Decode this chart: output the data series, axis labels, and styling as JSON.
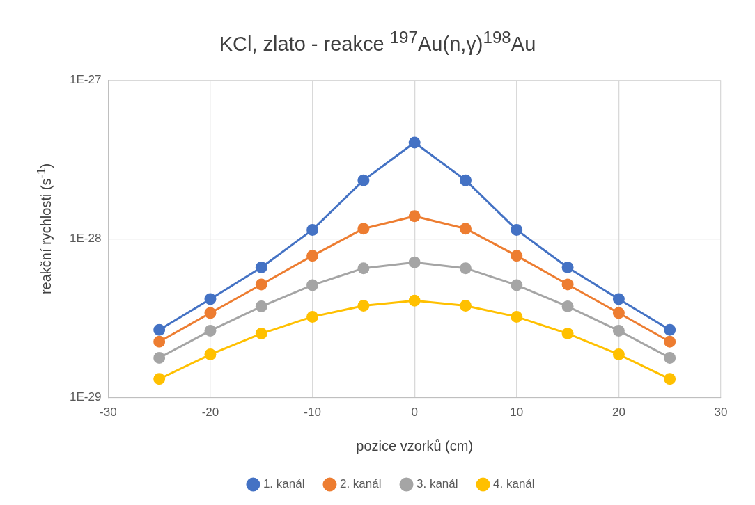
{
  "chart_data": {
    "type": "line",
    "title": "KCl, zlato - reakce $^{197}$Au(n,γ)$^{198}$Au",
    "xlabel": "pozice vzorků (cm)",
    "ylabel": "reakční rychlosti (s$^{-1}$)",
    "x": [
      -25,
      -20,
      -15,
      -10,
      -5,
      0,
      5,
      10,
      15,
      20,
      25
    ],
    "series": [
      {
        "name": "1. kanál",
        "color": "#4472c4",
        "values": [
          2.67e-29,
          4.17e-29,
          6.6e-29,
          1.14e-28,
          2.34e-28,
          4.04e-28,
          2.34e-28,
          1.14e-28,
          6.6e-29,
          4.17e-29,
          2.67e-29
        ]
      },
      {
        "name": "2. kanál",
        "color": "#ed7d31",
        "values": [
          2.25e-29,
          3.41e-29,
          5.16e-29,
          7.83e-29,
          1.16e-28,
          1.39e-28,
          1.16e-28,
          7.83e-29,
          5.16e-29,
          3.41e-29,
          2.25e-29
        ]
      },
      {
        "name": "3. kanál",
        "color": "#a5a5a5",
        "values": [
          1.78e-29,
          2.64e-29,
          3.75e-29,
          5.11e-29,
          6.53e-29,
          7.11e-29,
          6.53e-29,
          5.11e-29,
          3.75e-29,
          2.64e-29,
          1.78e-29
        ]
      },
      {
        "name": "4. kanál",
        "color": "#ffc000",
        "values": [
          1.31e-29,
          1.87e-29,
          2.53e-29,
          3.23e-29,
          3.79e-29,
          4.08e-29,
          3.79e-29,
          3.23e-29,
          2.53e-29,
          1.87e-29,
          1.31e-29
        ]
      }
    ],
    "xlim": [
      -30,
      30
    ],
    "xticks": [
      -30,
      -20,
      -10,
      0,
      10,
      20,
      30
    ],
    "ylim": [
      1e-29,
      1e-27
    ],
    "yticks": [
      {
        "value": 1e-29,
        "label": "1E-29"
      },
      {
        "value": 1e-28,
        "label": "1E-28"
      },
      {
        "value": 1e-27,
        "label": "1E-27"
      }
    ],
    "log": "y",
    "grid": true,
    "legend": "bottom",
    "marker": "circle",
    "line_style": "solid"
  }
}
